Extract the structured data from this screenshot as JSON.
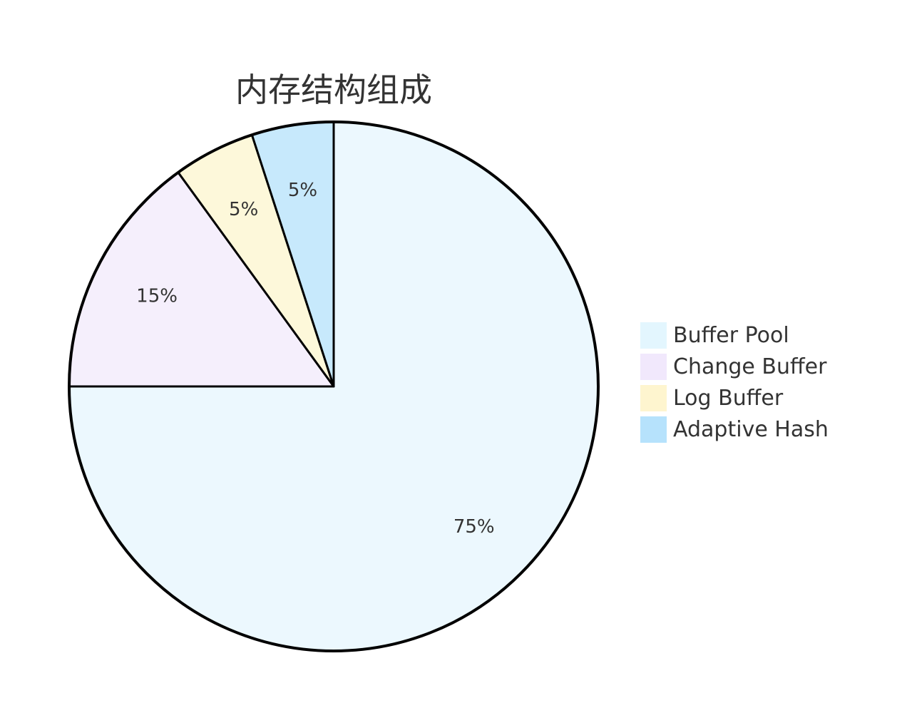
{
  "chart_data": {
    "type": "pie",
    "title": "内存结构组成",
    "legend_position": "right",
    "slices": [
      {
        "label": "Buffer Pool",
        "value": 75,
        "display": "75%",
        "color": "#ECF8FE"
      },
      {
        "label": "Change Buffer",
        "value": 15,
        "display": "15%",
        "color": "#F5EFFC"
      },
      {
        "label": "Log Buffer",
        "value": 5,
        "display": "5%",
        "color": "#FDF8DA"
      },
      {
        "label": "Adaptive Hash",
        "value": 5,
        "display": "5%",
        "color": "#C7E9FC"
      }
    ],
    "legend_colors": [
      "#E3F6FE",
      "#F1E8FC",
      "#FEF5CF",
      "#B6E2FC"
    ]
  }
}
